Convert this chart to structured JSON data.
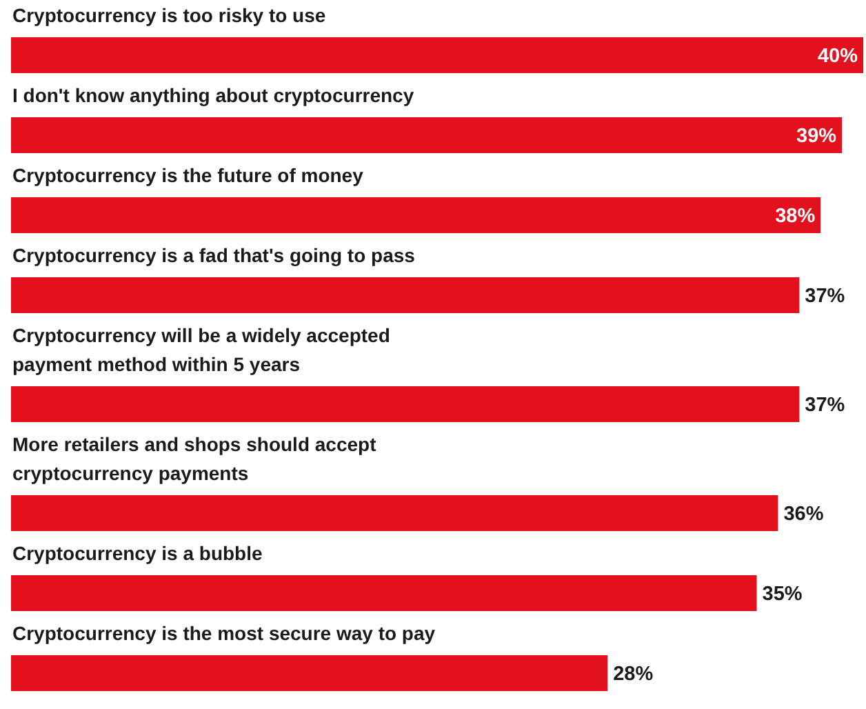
{
  "chart_data": {
    "type": "bar",
    "orientation": "horizontal",
    "categories": [
      "Cryptocurrency is too risky to use",
      "I don't know anything about cryptocurrency",
      "Cryptocurrency is the future of money",
      "Cryptocurrency is a fad that's going to pass",
      "Cryptocurrency will be a widely accepted\npayment method within 5 years",
      "More retailers and shops should accept\ncryptocurrency payments",
      "Cryptocurrency is a bubble",
      "Cryptocurrency is the most secure way to pay"
    ],
    "values": [
      40,
      39,
      38,
      37,
      37,
      36,
      35,
      28
    ],
    "value_labels": [
      "40%",
      "39%",
      "38%",
      "37%",
      "37%",
      "36%",
      "35%",
      "28%"
    ],
    "color": "#e3101e"
  }
}
